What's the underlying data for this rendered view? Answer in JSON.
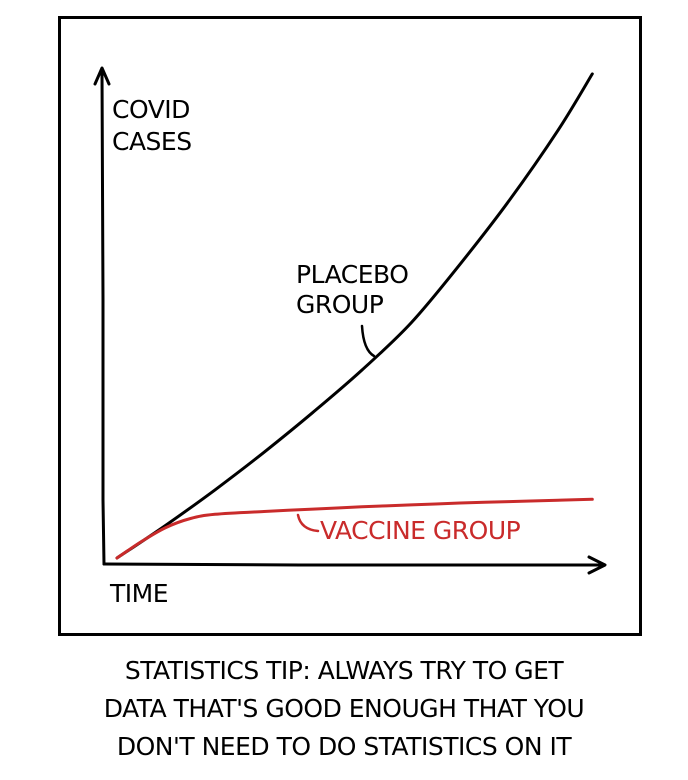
{
  "caption": {
    "line1": "STATISTICS TIP: ALWAYS TRY TO GET",
    "line2": "DATA THAT'S GOOD ENOUGH THAT YOU",
    "line3": "DON'T NEED TO DO STATISTICS ON IT"
  },
  "chart_data": {
    "type": "line",
    "title": "",
    "xlabel": "TIME",
    "ylabel_lines": [
      "COVID",
      "CASES"
    ],
    "xlim": [
      0,
      100
    ],
    "ylim": [
      0,
      100
    ],
    "grid": false,
    "legend": "none",
    "series": [
      {
        "name": "PLACEBO GROUP",
        "color": "#000000",
        "x": [
          0,
          10,
          20,
          30,
          40,
          50,
          60,
          70,
          80,
          90,
          97
        ],
        "y": [
          0,
          7,
          14.5,
          22.5,
          31,
          40,
          50,
          62.5,
          76,
          91,
          103
        ]
      },
      {
        "name": "VACCINE GROUP",
        "color": "#c92b2b",
        "x": [
          0,
          5,
          10,
          15,
          20,
          30,
          40,
          50,
          60,
          70,
          80,
          90,
          97
        ],
        "y": [
          0,
          3.5,
          6.5,
          8.4,
          9.3,
          9.9,
          10.4,
          10.9,
          11.3,
          11.7,
          12.0,
          12.3,
          12.5
        ]
      }
    ],
    "annotations": [
      {
        "series": 0,
        "lines": [
          "PLACEBO",
          "GROUP"
        ]
      },
      {
        "series": 1,
        "lines": [
          "VACCINE GROUP"
        ]
      }
    ]
  }
}
